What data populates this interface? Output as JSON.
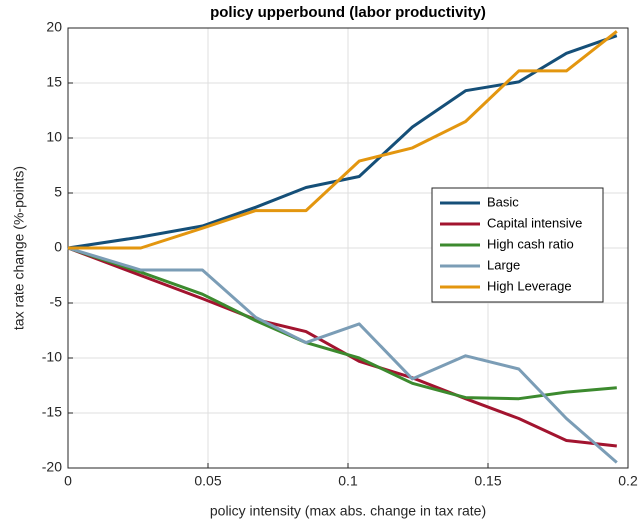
{
  "chart_data": {
    "type": "line",
    "title": "policy upperbound (labor productivity)",
    "xlabel": "policy intensity (max abs. change in tax rate)",
    "ylabel": "tax rate change (%-points)",
    "x": [
      0,
      0.026,
      0.048,
      0.067,
      0.085,
      0.104,
      0.123,
      0.142,
      0.161,
      0.178,
      0.196
    ],
    "series": [
      {
        "name": "Basic",
        "color": "#154f78",
        "values": [
          0,
          1.0,
          2.0,
          3.7,
          5.5,
          6.5,
          11.0,
          14.3,
          15.1,
          17.7,
          19.3
        ]
      },
      {
        "name": "Capital intensive",
        "color": "#a2142f",
        "values": [
          0,
          -2.5,
          -4.6,
          -6.5,
          -7.6,
          -10.3,
          -11.8,
          -13.7,
          -15.5,
          -17.5,
          -18.0
        ]
      },
      {
        "name": "High cash ratio",
        "color": "#3c8a2e",
        "values": [
          0,
          -2.2,
          -4.2,
          -6.6,
          -8.6,
          -10.0,
          -12.3,
          -13.6,
          -13.7,
          -13.1,
          -12.7
        ]
      },
      {
        "name": "Large",
        "color": "#7b9db6",
        "values": [
          0,
          -2.0,
          -2.0,
          -6.3,
          -8.6,
          -6.9,
          -11.9,
          -9.8,
          -11.0,
          -15.5,
          -19.5
        ]
      },
      {
        "name": "High Leverage",
        "color": "#e3960f",
        "values": [
          0,
          0,
          1.8,
          3.4,
          3.4,
          7.9,
          9.1,
          11.5,
          16.1,
          16.1,
          19.7
        ]
      }
    ],
    "xlim": [
      0,
      0.2
    ],
    "xticks": [
      0,
      0.05,
      0.1,
      0.15,
      0.2
    ],
    "ylim": [
      -20,
      20
    ],
    "yticks": [
      -20,
      -15,
      -10,
      -5,
      0,
      5,
      10,
      15,
      20
    ],
    "grid": true,
    "legend": "east"
  }
}
